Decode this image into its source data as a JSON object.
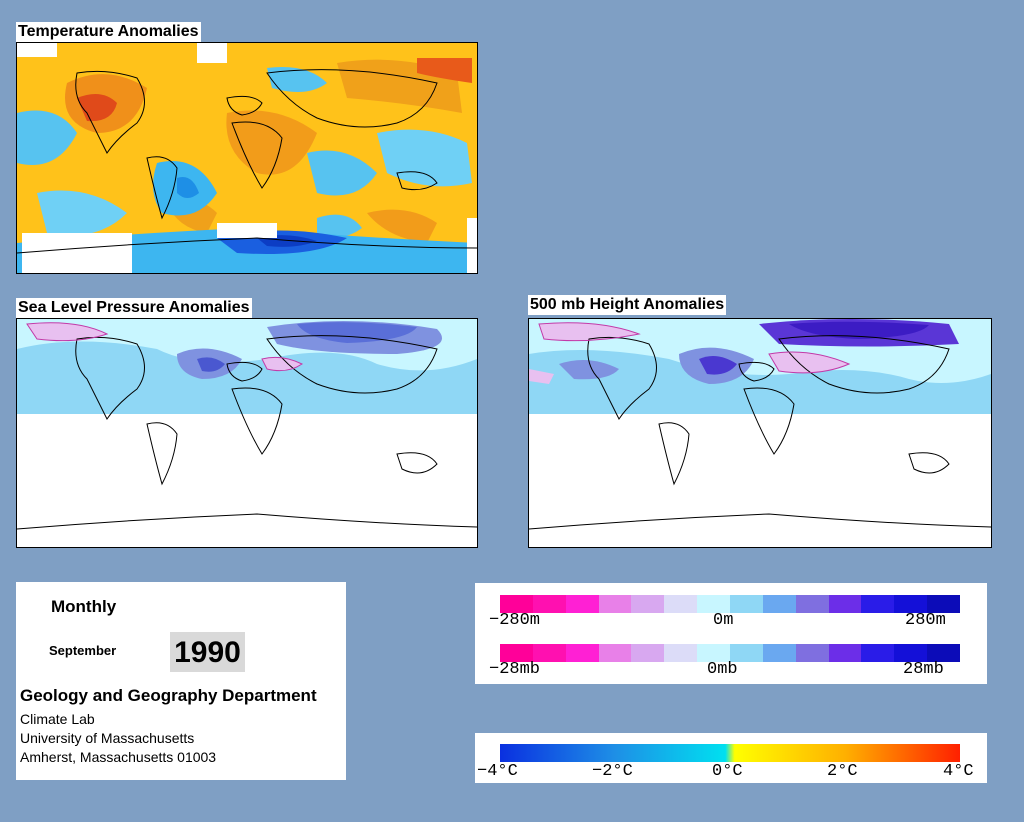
{
  "panels": {
    "temperature": {
      "title": "Temperature Anomalies"
    },
    "slp": {
      "title": "Sea Level Pressure Anomalies"
    },
    "height500": {
      "title": "500 mb Height Anomalies"
    }
  },
  "info": {
    "frequency": "Monthly",
    "month": "September",
    "year": "1990",
    "department": "Geology and Geography Department",
    "lab": "Climate Lab",
    "university": "University of Massachusetts",
    "address": "Amherst, Massachusetts 01003"
  },
  "legend_height": {
    "min": "−280m",
    "mid": "0m",
    "max": "280m"
  },
  "legend_pressure": {
    "min": "−28mb",
    "mid": "0mb",
    "max": "28mb"
  },
  "legend_temp": {
    "t1": "−4°C",
    "t2": "−2°C",
    "t3": "0°C",
    "t4": "2°C",
    "t5": "4°C"
  },
  "colors": {
    "background": "#7f9fc4",
    "warm": "#ffb800",
    "hot": "#e8581b",
    "cool": "#3db6f0",
    "cold": "#1a5fe0",
    "pale": "#c8f6ff",
    "violet": "#5a36d6"
  }
}
